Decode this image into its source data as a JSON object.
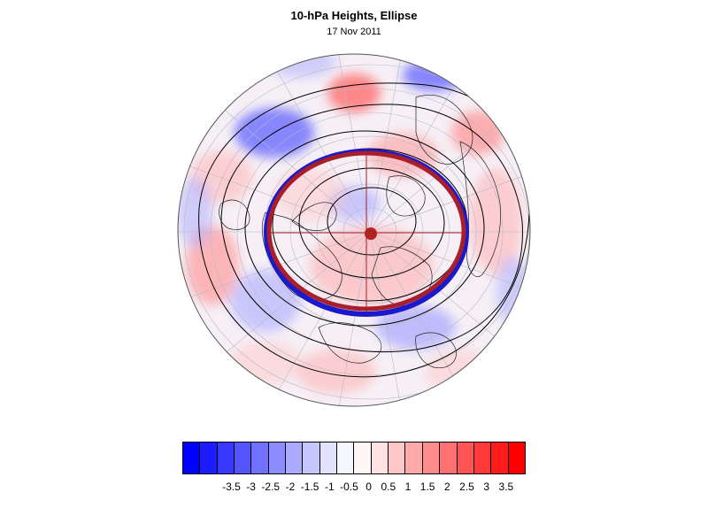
{
  "title": "10-hPa Heights, Ellipse",
  "subtitle": "17 Nov 2011",
  "colors": {
    "negative_max": "#0000ff",
    "positive_max": "#ff0000",
    "neutral": "#ffffff",
    "ellipse_outer": "#1a1acc",
    "ellipse_inner": "#a81e2a",
    "center_marker": "#b22222",
    "contour": "#000000"
  },
  "colorbar": {
    "colors": [
      "#0000ff",
      "#1c1cff",
      "#3838ff",
      "#5555ff",
      "#7171ff",
      "#8d8dff",
      "#aaaaff",
      "#c6c6ff",
      "#e2e2ff",
      "#f6f6ff",
      "#fff6f6",
      "#ffe2e2",
      "#ffc6c6",
      "#ffaaaa",
      "#ff8d8d",
      "#ff7171",
      "#ff5555",
      "#ff3838",
      "#ff1c1c",
      "#ff0000"
    ],
    "labels": [
      "-3.5",
      "-3",
      "-2.5",
      "-2",
      "-1.5",
      "-1",
      "-0.5",
      "0",
      "0.5",
      "1",
      "1.5",
      "2",
      "2.5",
      "3",
      "3.5"
    ]
  }
}
